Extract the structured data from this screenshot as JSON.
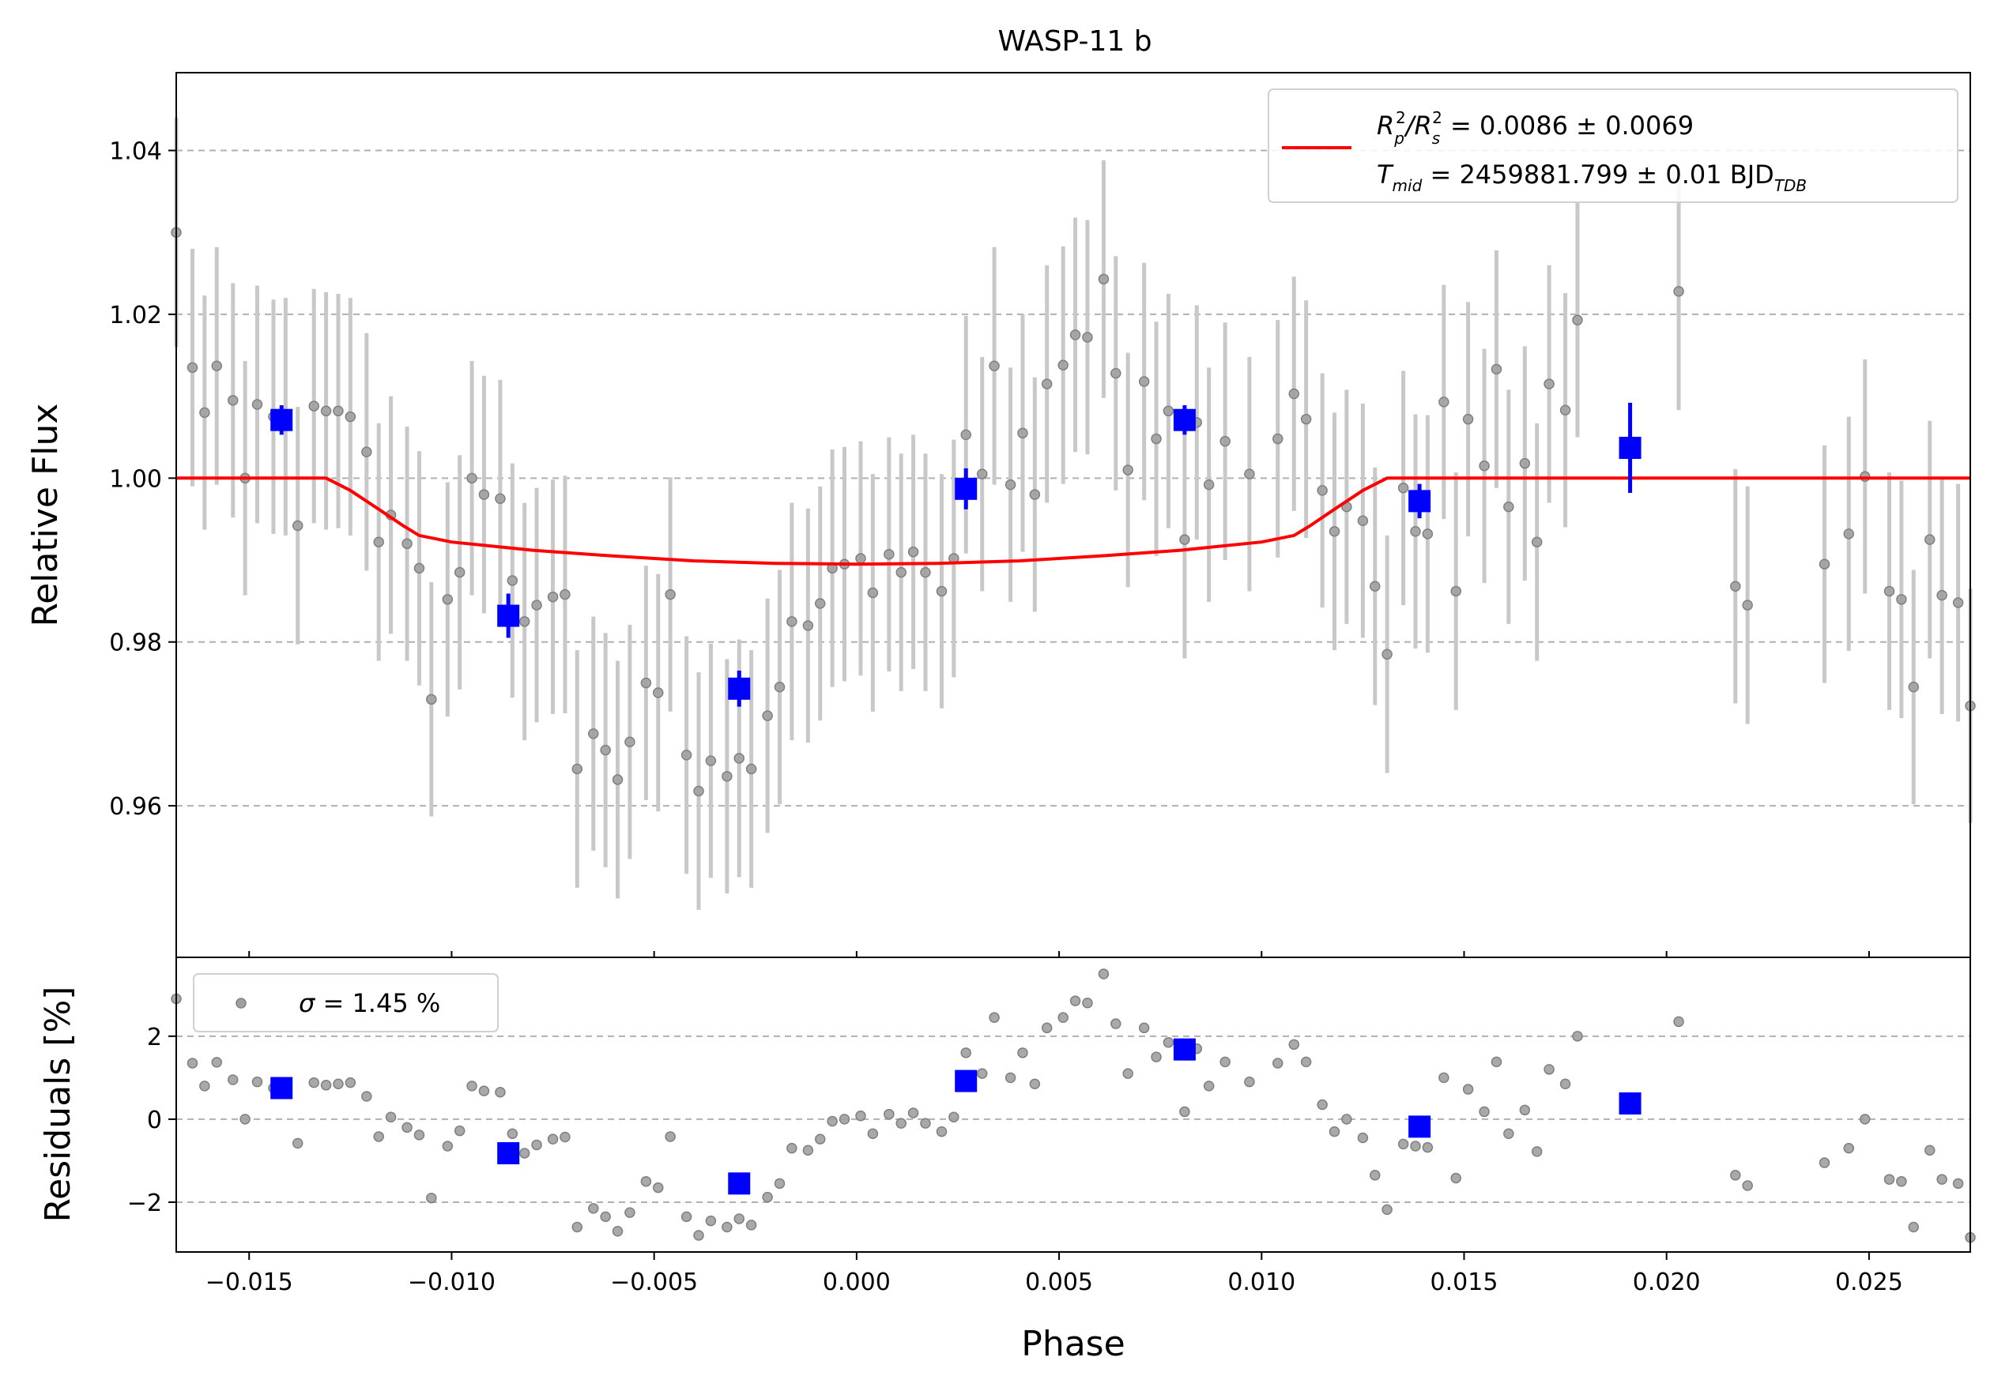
{
  "chart_data": {
    "type": "scatter",
    "title": "WASP-11 b",
    "xlabel": "Phase",
    "xlim": [
      -0.0168,
      0.0275
    ],
    "xticks": [
      "-0.015",
      "-0.010",
      "-0.005",
      "0.000",
      "0.005",
      "0.010",
      "0.015",
      "0.020",
      "0.025"
    ],
    "xtick_values": [
      -0.015,
      -0.01,
      -0.005,
      0.0,
      0.005,
      0.01,
      0.015,
      0.02,
      0.025
    ],
    "main_panel": {
      "ylabel": "Relative Flux",
      "ylim": [
        0.9415,
        1.0495
      ],
      "yticks": [
        "0.96",
        "0.98",
        "1.00",
        "1.02",
        "1.04"
      ],
      "ytick_values": [
        0.96,
        0.98,
        1.0,
        1.02,
        1.04
      ],
      "grid": "y-dashed",
      "legend_placement": "top-right",
      "legend": {
        "line1_base": "R",
        "line1_sub": "p",
        "line1_sup": "2",
        "line1_sep": "/R",
        "line1_sub2": "s",
        "line1_sup2": "2",
        "line1_value": " = 0.0086 ± 0.0069",
        "line2_base": "T",
        "line2_sub": "mid",
        "line2_value": " = 2459881.799 ± 0.01 BJD",
        "line2_unit_sub": "TDB"
      },
      "raw_points": [
        [
          -0.0168,
          1.03,
          0.014
        ],
        [
          -0.0164,
          1.0135,
          0.0145
        ],
        [
          -0.0161,
          1.008,
          0.0143
        ],
        [
          -0.0158,
          1.0137,
          0.0145
        ],
        [
          -0.0154,
          1.0095,
          0.0143
        ],
        [
          -0.0151,
          1.0,
          0.0143
        ],
        [
          -0.0148,
          1.009,
          0.0145
        ],
        [
          -0.0144,
          1.0075,
          0.0143
        ],
        [
          -0.0141,
          1.0075,
          0.0145
        ],
        [
          -0.0138,
          0.9942,
          0.0145
        ],
        [
          -0.0134,
          1.0088,
          0.0143
        ],
        [
          -0.0131,
          1.0082,
          0.0145
        ],
        [
          -0.0128,
          1.0082,
          0.0143
        ],
        [
          -0.0125,
          1.0075,
          0.0145
        ],
        [
          -0.0121,
          1.0032,
          0.0145
        ],
        [
          -0.0118,
          0.9922,
          0.0145
        ],
        [
          -0.0115,
          0.9955,
          0.0145
        ],
        [
          -0.0111,
          0.992,
          0.0143
        ],
        [
          -0.0108,
          0.989,
          0.0143
        ],
        [
          -0.0105,
          0.973,
          0.0143
        ],
        [
          -0.0101,
          0.9852,
          0.0143
        ],
        [
          -0.0098,
          0.9885,
          0.0143
        ],
        [
          -0.0095,
          1.0,
          0.0143
        ],
        [
          -0.0092,
          0.998,
          0.0145
        ],
        [
          -0.0088,
          0.9975,
          0.0145
        ],
        [
          -0.0085,
          0.9875,
          0.0143
        ],
        [
          -0.0082,
          0.9825,
          0.0145
        ],
        [
          -0.0079,
          0.9845,
          0.0143
        ],
        [
          -0.0075,
          0.9855,
          0.0143
        ],
        [
          -0.0072,
          0.9858,
          0.0145
        ],
        [
          -0.0069,
          0.9645,
          0.0145
        ],
        [
          -0.0065,
          0.9688,
          0.0143
        ],
        [
          -0.0062,
          0.9668,
          0.0143
        ],
        [
          -0.0059,
          0.9632,
          0.0145
        ],
        [
          -0.0056,
          0.9678,
          0.0143
        ],
        [
          -0.0052,
          0.975,
          0.0143
        ],
        [
          -0.0049,
          0.9738,
          0.0145
        ],
        [
          -0.0046,
          0.9858,
          0.0143
        ],
        [
          -0.0042,
          0.9662,
          0.0145
        ],
        [
          -0.0039,
          0.9618,
          0.0145
        ],
        [
          -0.0036,
          0.9655,
          0.0143
        ],
        [
          -0.0032,
          0.9636,
          0.0143
        ],
        [
          -0.0029,
          0.9658,
          0.0145
        ],
        [
          -0.0026,
          0.9645,
          0.0145
        ],
        [
          -0.0022,
          0.971,
          0.0143
        ],
        [
          -0.0019,
          0.9745,
          0.0143
        ],
        [
          -0.0016,
          0.9825,
          0.0145
        ],
        [
          -0.0012,
          0.982,
          0.0143
        ],
        [
          -0.0009,
          0.9847,
          0.0143
        ],
        [
          -0.0006,
          0.989,
          0.0145
        ],
        [
          -0.0003,
          0.9895,
          0.0143
        ],
        [
          0.0001,
          0.9902,
          0.0143
        ],
        [
          0.0004,
          0.986,
          0.0145
        ],
        [
          0.0008,
          0.9907,
          0.0143
        ],
        [
          0.0011,
          0.9885,
          0.0145
        ],
        [
          0.0014,
          0.991,
          0.0143
        ],
        [
          0.0017,
          0.9885,
          0.0145
        ],
        [
          0.0021,
          0.9862,
          0.0143
        ],
        [
          0.0024,
          0.9902,
          0.0145
        ],
        [
          0.0027,
          1.0053,
          0.0145
        ],
        [
          0.0031,
          1.0005,
          0.0143
        ],
        [
          0.0034,
          1.0137,
          0.0145
        ],
        [
          0.0038,
          0.9992,
          0.0143
        ],
        [
          0.0041,
          1.0055,
          0.0145
        ],
        [
          0.0044,
          0.998,
          0.0143
        ],
        [
          0.0047,
          1.0115,
          0.0145
        ],
        [
          0.0051,
          1.0138,
          0.0145
        ],
        [
          0.0054,
          1.0175,
          0.0143
        ],
        [
          0.0057,
          1.0172,
          0.0143
        ],
        [
          0.0061,
          1.0243,
          0.0145
        ],
        [
          0.0064,
          1.0128,
          0.0143
        ],
        [
          0.0067,
          1.001,
          0.0143
        ],
        [
          0.0071,
          1.0118,
          0.0145
        ],
        [
          0.0074,
          1.0048,
          0.0143
        ],
        [
          0.0077,
          1.0082,
          0.0143
        ],
        [
          0.0081,
          0.9925,
          0.0145
        ],
        [
          0.0084,
          1.0068,
          0.0143
        ],
        [
          0.0087,
          0.9992,
          0.0143
        ],
        [
          0.0091,
          1.0045,
          0.0145
        ],
        [
          0.0097,
          1.0005,
          0.0143
        ],
        [
          0.0104,
          1.0048,
          0.0145
        ],
        [
          0.0108,
          1.0103,
          0.0143
        ],
        [
          0.0111,
          1.0072,
          0.0145
        ],
        [
          0.0115,
          0.9985,
          0.0143
        ],
        [
          0.0118,
          0.9935,
          0.0145
        ],
        [
          0.0121,
          0.9965,
          0.0143
        ],
        [
          0.0125,
          0.9948,
          0.0143
        ],
        [
          0.0128,
          0.9868,
          0.0145
        ],
        [
          0.0131,
          0.9785,
          0.0145
        ],
        [
          0.0135,
          0.9988,
          0.0143
        ],
        [
          0.0138,
          0.9935,
          0.0143
        ],
        [
          0.0141,
          0.9932,
          0.0145
        ],
        [
          0.0145,
          1.0093,
          0.0143
        ],
        [
          0.0148,
          0.9862,
          0.0145
        ],
        [
          0.0151,
          1.0072,
          0.0143
        ],
        [
          0.0155,
          1.0015,
          0.0143
        ],
        [
          0.0158,
          1.0133,
          0.0145
        ],
        [
          0.0161,
          0.9965,
          0.0143
        ],
        [
          0.0165,
          1.0018,
          0.0143
        ],
        [
          0.0168,
          0.9922,
          0.0145
        ],
        [
          0.0171,
          1.0115,
          0.0145
        ],
        [
          0.0175,
          1.0083,
          0.0143
        ],
        [
          0.0178,
          1.0193,
          0.0143
        ],
        [
          0.0203,
          1.0228,
          0.0145
        ],
        [
          0.0217,
          0.9868,
          0.0143
        ],
        [
          0.022,
          0.9845,
          0.0145
        ],
        [
          0.0239,
          0.9895,
          0.0145
        ],
        [
          0.0245,
          0.9932,
          0.0143
        ],
        [
          0.0249,
          1.0002,
          0.0143
        ],
        [
          0.0255,
          0.9862,
          0.0145
        ],
        [
          0.0258,
          0.9852,
          0.0145
        ],
        [
          0.0261,
          0.9745,
          0.0143
        ],
        [
          0.0265,
          0.9925,
          0.0145
        ],
        [
          0.0268,
          0.9857,
          0.0145
        ],
        [
          0.0272,
          0.9848,
          0.0145
        ],
        [
          0.0275,
          0.9722,
          0.0143
        ]
      ],
      "binned_points": [
        [
          -0.0142,
          1.0071,
          0.0018
        ],
        [
          -0.0086,
          0.9832,
          0.0027
        ],
        [
          -0.0029,
          0.9743,
          0.0022
        ],
        [
          0.0027,
          0.9987,
          0.0025
        ],
        [
          0.0081,
          1.0071,
          0.0018
        ],
        [
          0.0139,
          0.9972,
          0.0021
        ],
        [
          0.0191,
          1.0037,
          0.0055
        ]
      ],
      "model_line": [
        [
          -0.0168,
          1.0
        ],
        [
          -0.0131,
          1.0
        ],
        [
          -0.0125,
          0.9985
        ],
        [
          -0.0118,
          0.9962
        ],
        [
          -0.0112,
          0.9942
        ],
        [
          -0.0108,
          0.993
        ],
        [
          -0.01,
          0.9922
        ],
        [
          -0.008,
          0.9912
        ],
        [
          -0.006,
          0.9905
        ],
        [
          -0.004,
          0.9899
        ],
        [
          -0.002,
          0.9896
        ],
        [
          0.0,
          0.9895
        ],
        [
          0.002,
          0.9896
        ],
        [
          0.004,
          0.9899
        ],
        [
          0.006,
          0.9905
        ],
        [
          0.008,
          0.9912
        ],
        [
          0.01,
          0.9922
        ],
        [
          0.0108,
          0.993
        ],
        [
          0.0112,
          0.9942
        ],
        [
          0.0118,
          0.9962
        ],
        [
          0.0125,
          0.9985
        ],
        [
          0.0131,
          1.0
        ],
        [
          0.0275,
          1.0
        ]
      ]
    },
    "residual_panel": {
      "ylabel": "Residuals [%]",
      "ylim": [
        -3.2,
        3.9
      ],
      "yticks": [
        "−2",
        "0",
        "2"
      ],
      "ytick_values": [
        -2,
        0,
        2
      ],
      "grid": "y-dashed",
      "legend_placement": "top-left",
      "legend": {
        "sigma_symbol": "σ",
        "sigma_text": " = 1.45 %"
      },
      "raw_points": [
        [
          -0.0168,
          2.9
        ],
        [
          -0.0164,
          1.35
        ],
        [
          -0.0161,
          0.8
        ],
        [
          -0.0158,
          1.37
        ],
        [
          -0.0154,
          0.95
        ],
        [
          -0.0151,
          0.0
        ],
        [
          -0.0148,
          0.9
        ],
        [
          -0.0144,
          0.75
        ],
        [
          -0.0141,
          0.75
        ],
        [
          -0.0138,
          -0.58
        ],
        [
          -0.0134,
          0.88
        ],
        [
          -0.0131,
          0.82
        ],
        [
          -0.0128,
          0.85
        ],
        [
          -0.0125,
          0.88
        ],
        [
          -0.0121,
          0.55
        ],
        [
          -0.0118,
          -0.42
        ],
        [
          -0.0115,
          0.05
        ],
        [
          -0.0111,
          -0.2
        ],
        [
          -0.0108,
          -0.38
        ],
        [
          -0.0105,
          -1.9
        ],
        [
          -0.0101,
          -0.65
        ],
        [
          -0.0098,
          -0.28
        ],
        [
          -0.0095,
          0.8
        ],
        [
          -0.0092,
          0.68
        ],
        [
          -0.0088,
          0.65
        ],
        [
          -0.0085,
          -0.35
        ],
        [
          -0.0082,
          -0.82
        ],
        [
          -0.0079,
          -0.62
        ],
        [
          -0.0075,
          -0.48
        ],
        [
          -0.0072,
          -0.43
        ],
        [
          -0.0069,
          -2.6
        ],
        [
          -0.0065,
          -2.15
        ],
        [
          -0.0062,
          -2.35
        ],
        [
          -0.0059,
          -2.7
        ],
        [
          -0.0056,
          -2.25
        ],
        [
          -0.0052,
          -1.5
        ],
        [
          -0.0049,
          -1.65
        ],
        [
          -0.0046,
          -0.42
        ],
        [
          -0.0042,
          -2.35
        ],
        [
          -0.0039,
          -2.8
        ],
        [
          -0.0036,
          -2.45
        ],
        [
          -0.0032,
          -2.6
        ],
        [
          -0.0029,
          -2.4
        ],
        [
          -0.0026,
          -2.55
        ],
        [
          -0.0022,
          -1.88
        ],
        [
          -0.0019,
          -1.55
        ],
        [
          -0.0016,
          -0.7
        ],
        [
          -0.0012,
          -0.75
        ],
        [
          -0.0009,
          -0.48
        ],
        [
          -0.0006,
          -0.05
        ],
        [
          -0.0003,
          0.0
        ],
        [
          0.0001,
          0.08
        ],
        [
          0.0004,
          -0.35
        ],
        [
          0.0008,
          0.12
        ],
        [
          0.0011,
          -0.1
        ],
        [
          0.0014,
          0.15
        ],
        [
          0.0017,
          -0.1
        ],
        [
          0.0021,
          -0.3
        ],
        [
          0.0024,
          0.05
        ],
        [
          0.0027,
          1.6
        ],
        [
          0.0031,
          1.1
        ],
        [
          0.0034,
          2.45
        ],
        [
          0.0038,
          1.0
        ],
        [
          0.0041,
          1.6
        ],
        [
          0.0044,
          0.85
        ],
        [
          0.0047,
          2.2
        ],
        [
          0.0051,
          2.45
        ],
        [
          0.0054,
          2.85
        ],
        [
          0.0057,
          2.8
        ],
        [
          0.0061,
          3.5
        ],
        [
          0.0064,
          2.3
        ],
        [
          0.0067,
          1.1
        ],
        [
          0.0071,
          2.2
        ],
        [
          0.0074,
          1.5
        ],
        [
          0.0077,
          1.85
        ],
        [
          0.0081,
          0.18
        ],
        [
          0.0084,
          1.7
        ],
        [
          0.0087,
          0.8
        ],
        [
          0.0091,
          1.38
        ],
        [
          0.0097,
          0.9
        ],
        [
          0.0104,
          1.35
        ],
        [
          0.0108,
          1.8
        ],
        [
          0.0111,
          1.38
        ],
        [
          0.0115,
          0.35
        ],
        [
          0.0118,
          -0.3
        ],
        [
          0.0121,
          0.0
        ],
        [
          0.0125,
          -0.45
        ],
        [
          0.0128,
          -1.35
        ],
        [
          0.0131,
          -2.18
        ],
        [
          0.0135,
          -0.6
        ],
        [
          0.0138,
          -0.65
        ],
        [
          0.0141,
          -0.68
        ],
        [
          0.0145,
          1.0
        ],
        [
          0.0148,
          -1.42
        ],
        [
          0.0151,
          0.72
        ],
        [
          0.0155,
          0.18
        ],
        [
          0.0158,
          1.38
        ],
        [
          0.0161,
          -0.35
        ],
        [
          0.0165,
          0.22
        ],
        [
          0.0168,
          -0.78
        ],
        [
          0.0171,
          1.2
        ],
        [
          0.0175,
          0.85
        ],
        [
          0.0178,
          2.0
        ],
        [
          0.0203,
          2.35
        ],
        [
          0.0217,
          -1.35
        ],
        [
          0.022,
          -1.6
        ],
        [
          0.0239,
          -1.05
        ],
        [
          0.0245,
          -0.7
        ],
        [
          0.0249,
          0.0
        ],
        [
          0.0255,
          -1.45
        ],
        [
          0.0258,
          -1.5
        ],
        [
          0.0261,
          -2.6
        ],
        [
          0.0265,
          -0.75
        ],
        [
          0.0268,
          -1.45
        ],
        [
          0.0272,
          -1.55
        ],
        [
          0.0275,
          -2.85
        ]
      ],
      "binned_points": [
        [
          -0.0142,
          0.75
        ],
        [
          -0.0086,
          -0.82
        ],
        [
          -0.0029,
          -1.55
        ],
        [
          0.0027,
          0.92
        ],
        [
          0.0081,
          1.68
        ],
        [
          0.0139,
          -0.18
        ],
        [
          0.0191,
          0.38
        ]
      ]
    },
    "colors": {
      "raw_marker": "#a0a0a0",
      "raw_marker_edge": "#808080",
      "raw_errorbar": "#c8c8c8",
      "binned": "#0000ff",
      "model": "#ff0000",
      "grid": "#b0b0b0"
    }
  }
}
